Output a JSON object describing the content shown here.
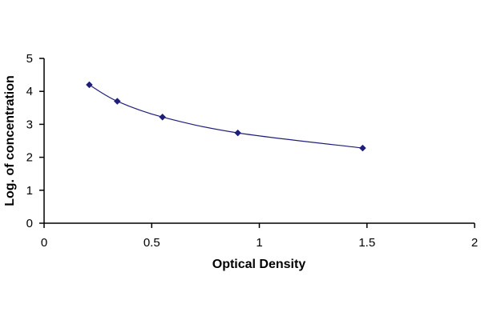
{
  "chart_data": {
    "type": "scatter",
    "title": "",
    "xlabel": "Optical Density",
    "ylabel": "Log. of concentration",
    "xlim": [
      0,
      2
    ],
    "ylim": [
      0,
      5
    ],
    "x_ticks": [
      0,
      0.5,
      1,
      1.5,
      2
    ],
    "x_tick_labels": [
      "0",
      "0.5",
      "1",
      "1.5",
      "2"
    ],
    "y_ticks": [
      0,
      1,
      2,
      3,
      4,
      5
    ],
    "y_tick_labels": [
      "0",
      "1",
      "2",
      "3",
      "4",
      "5"
    ],
    "grid": false,
    "legend": "none",
    "series": [
      {
        "x": [
          0.21,
          0.34,
          0.55,
          0.9,
          1.48
        ],
        "y": [
          4.2,
          3.7,
          3.22,
          2.74,
          2.28
        ],
        "color": "#1f1f7a",
        "trendline": "smooth"
      }
    ]
  }
}
